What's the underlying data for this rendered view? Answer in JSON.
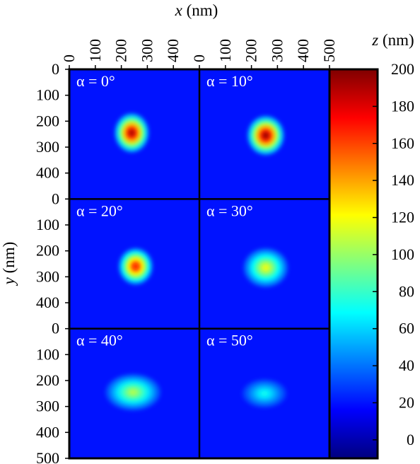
{
  "chart_data": {
    "type": "heatmap",
    "x_axis": {
      "title_symbol": "x",
      "title_unit": " (nm)",
      "range": [
        0,
        500
      ],
      "ticks_left_column": [
        "0",
        "100",
        "200",
        "300",
        "400"
      ],
      "ticks_right_column": [
        "0",
        "100",
        "200",
        "300",
        "400",
        "500"
      ]
    },
    "y_axis": {
      "title_symbol": "y",
      "title_unit": " (nm)",
      "range": [
        0,
        500
      ],
      "ticks_row_1": [
        "0",
        "100",
        "200",
        "300",
        "400"
      ],
      "ticks_row_2": [
        "0",
        "100",
        "200",
        "300",
        "400"
      ],
      "ticks_row_3": [
        "0",
        "100",
        "200",
        "300",
        "400",
        "500"
      ]
    },
    "colorbar": {
      "title_symbol": "z",
      "title_unit": " (nm)",
      "range": [
        -10,
        200
      ],
      "ticks": [
        "200",
        "180",
        "160",
        "140",
        "120",
        "100",
        "80",
        "60",
        "40",
        "20",
        "0"
      ],
      "colormap": "jet"
    },
    "background_z": 20,
    "panels": [
      {
        "label": "α = 0°",
        "alpha_deg": 0,
        "center_x": 240,
        "center_y": 245,
        "radius_x": 65,
        "radius_y": 75,
        "peak_z": 192
      },
      {
        "label": "α = 10°",
        "alpha_deg": 10,
        "center_x": 255,
        "center_y": 255,
        "radius_x": 70,
        "radius_y": 75,
        "peak_z": 196
      },
      {
        "label": "α = 20°",
        "alpha_deg": 20,
        "center_x": 255,
        "center_y": 260,
        "radius_x": 65,
        "radius_y": 70,
        "peak_z": 172
      },
      {
        "label": "α = 30°",
        "alpha_deg": 30,
        "center_x": 255,
        "center_y": 265,
        "radius_x": 85,
        "radius_y": 75,
        "peak_z": 118
      },
      {
        "label": "α = 40°",
        "alpha_deg": 40,
        "center_x": 245,
        "center_y": 245,
        "radius_x": 105,
        "radius_y": 70,
        "peak_z": 105
      },
      {
        "label": "α = 50°",
        "alpha_deg": 50,
        "center_x": 250,
        "center_y": 250,
        "radius_x": 85,
        "radius_y": 55,
        "peak_z": 72
      }
    ]
  }
}
